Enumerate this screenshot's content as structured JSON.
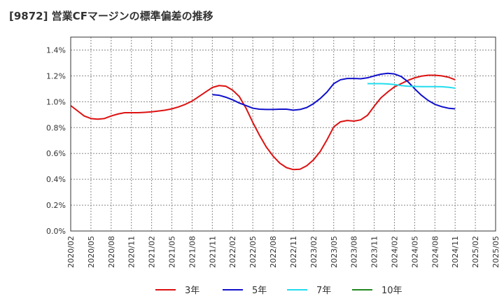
{
  "chart_data": {
    "type": "line",
    "title": "[9872]  営業CFマージンの標準偏差の推移",
    "xlabel": "",
    "ylabel": "",
    "x_ticks": [
      "2020/02",
      "2020/05",
      "2020/08",
      "2020/11",
      "2021/02",
      "2021/05",
      "2021/08",
      "2021/11",
      "2022/02",
      "2022/05",
      "2022/08",
      "2022/11",
      "2023/02",
      "2023/05",
      "2023/08",
      "2023/11",
      "2024/02",
      "2024/05",
      "2024/08",
      "2024/11",
      "2025/02",
      "2025/05"
    ],
    "y_ticks": [
      "0.0%",
      "0.2%",
      "0.4%",
      "0.6%",
      "0.8%",
      "1.0%",
      "1.2%",
      "1.4%"
    ],
    "ylim": [
      0,
      1.5
    ],
    "grid": "dotted",
    "legend": "bottom",
    "series": [
      {
        "name": "3年",
        "color": "#dd1111",
        "points": [
          [
            "2020/02",
            0.97
          ],
          [
            "2020/03",
            0.93
          ],
          [
            "2020/04",
            0.89
          ],
          [
            "2020/05",
            0.87
          ],
          [
            "2020/06",
            0.865
          ],
          [
            "2020/07",
            0.87
          ],
          [
            "2020/08",
            0.89
          ],
          [
            "2020/09",
            0.905
          ],
          [
            "2020/10",
            0.915
          ],
          [
            "2020/11",
            0.915
          ],
          [
            "2020/12",
            0.915
          ],
          [
            "2021/01",
            0.918
          ],
          [
            "2021/02",
            0.922
          ],
          [
            "2021/03",
            0.928
          ],
          [
            "2021/04",
            0.935
          ],
          [
            "2021/05",
            0.945
          ],
          [
            "2021/06",
            0.96
          ],
          [
            "2021/07",
            0.98
          ],
          [
            "2021/08",
            1.005
          ],
          [
            "2021/09",
            1.04
          ],
          [
            "2021/10",
            1.075
          ],
          [
            "2021/11",
            1.11
          ],
          [
            "2021/12",
            1.125
          ],
          [
            "2022/01",
            1.12
          ],
          [
            "2022/02",
            1.09
          ],
          [
            "2022/03",
            1.04
          ],
          [
            "2022/04",
            0.95
          ],
          [
            "2022/05",
            0.84
          ],
          [
            "2022/06",
            0.74
          ],
          [
            "2022/07",
            0.65
          ],
          [
            "2022/08",
            0.58
          ],
          [
            "2022/09",
            0.525
          ],
          [
            "2022/10",
            0.49
          ],
          [
            "2022/11",
            0.475
          ],
          [
            "2022/12",
            0.478
          ],
          [
            "2023/01",
            0.505
          ],
          [
            "2023/02",
            0.55
          ],
          [
            "2023/03",
            0.615
          ],
          [
            "2023/04",
            0.705
          ],
          [
            "2023/05",
            0.805
          ],
          [
            "2023/06",
            0.845
          ],
          [
            "2023/07",
            0.855
          ],
          [
            "2023/08",
            0.85
          ],
          [
            "2023/09",
            0.86
          ],
          [
            "2023/10",
            0.895
          ],
          [
            "2023/11",
            0.965
          ],
          [
            "2023/12",
            1.03
          ],
          [
            "2024/01",
            1.075
          ],
          [
            "2024/02",
            1.115
          ],
          [
            "2024/03",
            1.14
          ],
          [
            "2024/04",
            1.165
          ],
          [
            "2024/05",
            1.185
          ],
          [
            "2024/06",
            1.198
          ],
          [
            "2024/07",
            1.205
          ],
          [
            "2024/08",
            1.205
          ],
          [
            "2024/09",
            1.2
          ],
          [
            "2024/10",
            1.19
          ],
          [
            "2024/11",
            1.17
          ]
        ]
      },
      {
        "name": "5年",
        "color": "#1111cc",
        "points": [
          [
            "2021/11",
            1.055
          ],
          [
            "2021/12",
            1.05
          ],
          [
            "2022/01",
            1.035
          ],
          [
            "2022/02",
            1.015
          ],
          [
            "2022/03",
            0.99
          ],
          [
            "2022/04",
            0.97
          ],
          [
            "2022/05",
            0.95
          ],
          [
            "2022/06",
            0.942
          ],
          [
            "2022/07",
            0.94
          ],
          [
            "2022/08",
            0.94
          ],
          [
            "2022/09",
            0.942
          ],
          [
            "2022/10",
            0.942
          ],
          [
            "2022/11",
            0.935
          ],
          [
            "2022/12",
            0.94
          ],
          [
            "2023/01",
            0.955
          ],
          [
            "2023/02",
            0.985
          ],
          [
            "2023/03",
            1.025
          ],
          [
            "2023/04",
            1.075
          ],
          [
            "2023/05",
            1.14
          ],
          [
            "2023/06",
            1.17
          ],
          [
            "2023/07",
            1.18
          ],
          [
            "2023/08",
            1.18
          ],
          [
            "2023/09",
            1.178
          ],
          [
            "2023/10",
            1.185
          ],
          [
            "2023/11",
            1.2
          ],
          [
            "2023/12",
            1.213
          ],
          [
            "2024/01",
            1.22
          ],
          [
            "2024/02",
            1.215
          ],
          [
            "2024/03",
            1.195
          ],
          [
            "2024/04",
            1.155
          ],
          [
            "2024/05",
            1.1
          ],
          [
            "2024/06",
            1.05
          ],
          [
            "2024/07",
            1.01
          ],
          [
            "2024/08",
            0.98
          ],
          [
            "2024/09",
            0.962
          ],
          [
            "2024/10",
            0.95
          ],
          [
            "2024/11",
            0.945
          ]
        ]
      },
      {
        "name": "7年",
        "color": "#22ddee",
        "points": [
          [
            "2023/10",
            1.14
          ],
          [
            "2023/11",
            1.14
          ],
          [
            "2023/12",
            1.14
          ],
          [
            "2024/01",
            1.138
          ],
          [
            "2024/02",
            1.133
          ],
          [
            "2024/03",
            1.125
          ],
          [
            "2024/04",
            1.12
          ],
          [
            "2024/05",
            1.118
          ],
          [
            "2024/06",
            1.117
          ],
          [
            "2024/07",
            1.117
          ],
          [
            "2024/08",
            1.117
          ],
          [
            "2024/09",
            1.116
          ],
          [
            "2024/10",
            1.112
          ],
          [
            "2024/11",
            1.105
          ]
        ]
      },
      {
        "name": "10年",
        "color": "#228822",
        "points": []
      }
    ]
  }
}
